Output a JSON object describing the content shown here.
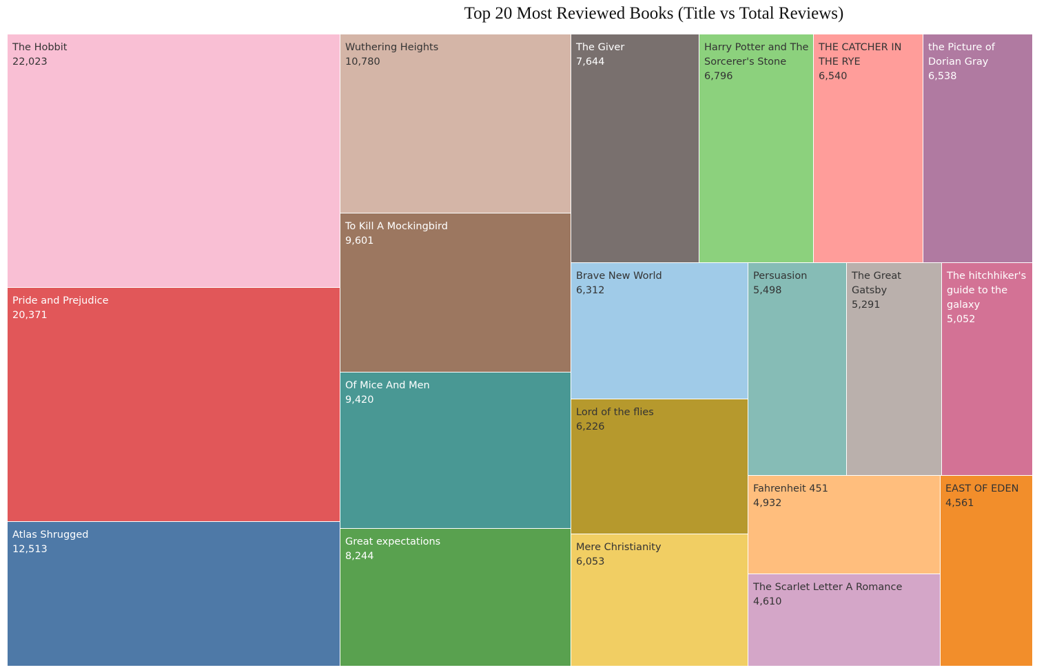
{
  "chart_data": {
    "type": "treemap",
    "title": "Top 20 Most Reviewed Books (Title vs Total Reviews)",
    "items": [
      {
        "label": "The Hobbit",
        "value": 22023,
        "value_text": "22,023",
        "color": "#F9BFD4",
        "text_color": "#333333"
      },
      {
        "label": "Pride and Prejudice",
        "value": 20371,
        "value_text": "20,371",
        "color": "#E15759",
        "text_color": "#ffffff"
      },
      {
        "label": "Atlas Shrugged",
        "value": 12513,
        "value_text": "12,513",
        "color": "#4E79A7",
        "text_color": "#ffffff"
      },
      {
        "label": "Wuthering Heights",
        "value": 10780,
        "value_text": "10,780",
        "color": "#D4B5A7",
        "text_color": "#333333"
      },
      {
        "label": "To Kill A Mockingbird",
        "value": 9601,
        "value_text": "9,601",
        "color": "#9C7760",
        "text_color": "#ffffff"
      },
      {
        "label": "Of Mice And Men",
        "value": 9420,
        "value_text": "9,420",
        "color": "#499894",
        "text_color": "#ffffff"
      },
      {
        "label": "Great expectations",
        "value": 8244,
        "value_text": "8,244",
        "color": "#59A14F",
        "text_color": "#ffffff"
      },
      {
        "label": "The Giver",
        "value": 7644,
        "value_text": "7,644",
        "color": "#79706E",
        "text_color": "#ffffff"
      },
      {
        "label": "Harry Potter and The Sorcerer's Stone",
        "value": 6796,
        "value_text": "6,796",
        "color": "#8CD17D",
        "text_color": "#333333"
      },
      {
        "label": "THE CATCHER IN THE RYE",
        "value": 6540,
        "value_text": "6,540",
        "color": "#FF9D9A",
        "text_color": "#333333"
      },
      {
        "label": "the Picture of Dorian Gray",
        "value": 6538,
        "value_text": "6,538",
        "color": "#B07AA1",
        "text_color": "#ffffff"
      },
      {
        "label": "Brave New World",
        "value": 6312,
        "value_text": "6,312",
        "color": "#A0CBE8",
        "text_color": "#333333"
      },
      {
        "label": "Lord of the flies",
        "value": 6226,
        "value_text": "6,226",
        "color": "#B6992D",
        "text_color": "#333333"
      },
      {
        "label": "Mere Christianity",
        "value": 6053,
        "value_text": "6,053",
        "color": "#F1CE63",
        "text_color": "#333333"
      },
      {
        "label": "Persuasion",
        "value": 5498,
        "value_text": "5,498",
        "color": "#86BCB6",
        "text_color": "#333333"
      },
      {
        "label": "The Great Gatsby",
        "value": 5291,
        "value_text": "5,291",
        "color": "#BAB0AC",
        "text_color": "#333333"
      },
      {
        "label": "The hitchhiker's guide to the galaxy",
        "value": 5052,
        "value_text": "5,052",
        "color": "#D37295",
        "text_color": "#ffffff"
      },
      {
        "label": "Fahrenheit 451",
        "value": 4932,
        "value_text": "4,932",
        "color": "#FFBE7D",
        "text_color": "#333333"
      },
      {
        "label": "The Scarlet Letter A Romance",
        "value": 4610,
        "value_text": "4,610",
        "color": "#D4A6C8",
        "text_color": "#333333"
      },
      {
        "label": "EAST OF EDEN",
        "value": 4561,
        "value_text": "4,561",
        "color": "#F28E2B",
        "text_color": "#333333"
      }
    ]
  }
}
